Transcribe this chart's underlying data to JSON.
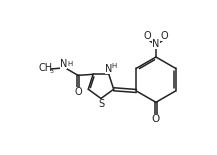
{
  "bg_color": "#ffffff",
  "line_color": "#222222",
  "line_width": 1.1,
  "font_size": 7.0,
  "fig_width": 2.17,
  "fig_height": 1.55,
  "dpi": 100,
  "xlim": [
    0,
    10
  ],
  "ylim": [
    0,
    7
  ]
}
